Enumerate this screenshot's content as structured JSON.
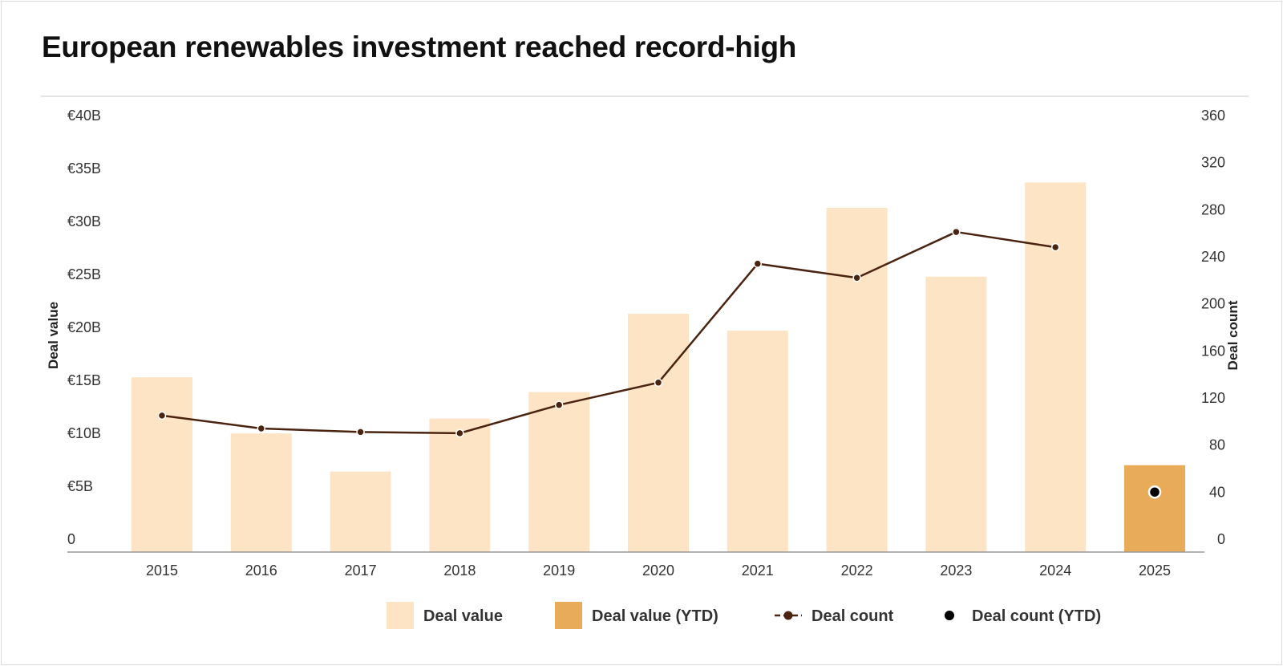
{
  "title": "European renewables investment reached record-high",
  "chart_data": {
    "type": "bar",
    "categories": [
      "2015",
      "2016",
      "2017",
      "2018",
      "2019",
      "2020",
      "2021",
      "2022",
      "2023",
      "2024",
      "2025"
    ],
    "series": [
      {
        "name": "Deal value",
        "type": "bar",
        "axis": "left",
        "values": [
          16.5,
          11.2,
          7.6,
          12.6,
          15.1,
          22.5,
          20.9,
          32.5,
          26.0,
          34.9,
          8.2
        ],
        "ytd": [
          false,
          false,
          false,
          false,
          false,
          false,
          false,
          false,
          false,
          false,
          true
        ],
        "color": "#fce4c4",
        "ytd_color": "#e8ab5a",
        "ytd_name": "Deal value (YTD)"
      },
      {
        "name": "Deal count",
        "type": "line",
        "axis": "right",
        "values": [
          116,
          105,
          102,
          101,
          125,
          144,
          245,
          233,
          272,
          259,
          null
        ],
        "color": "#4a2311"
      },
      {
        "name": "Deal count (YTD)",
        "type": "scatter",
        "axis": "right",
        "values": [
          null,
          null,
          null,
          null,
          null,
          null,
          null,
          null,
          null,
          null,
          51
        ],
        "color": "#000000"
      }
    ],
    "left_axis": {
      "label": "Deal value",
      "ylim": [
        0,
        40
      ],
      "ticks": [
        "0",
        "€5B",
        "€10B",
        "€15B",
        "€20B",
        "€25B",
        "€30B",
        "€35B",
        "€40B"
      ]
    },
    "right_axis": {
      "label": "Deal count",
      "ylim": [
        0,
        360
      ],
      "ticks": [
        "0",
        "40",
        "80",
        "120",
        "160",
        "200",
        "240",
        "280",
        "320",
        "360"
      ]
    },
    "grid": false,
    "legend": {
      "position": "bottom-center",
      "items": [
        {
          "label": "Deal value",
          "symbol": "square",
          "color": "#fce4c4"
        },
        {
          "label": "Deal value (YTD)",
          "symbol": "square",
          "color": "#e8ab5a"
        },
        {
          "label": "Deal count",
          "symbol": "line-dot",
          "color": "#4a2311"
        },
        {
          "label": "Deal count (YTD)",
          "symbol": "dot",
          "color": "#000000"
        }
      ]
    }
  }
}
